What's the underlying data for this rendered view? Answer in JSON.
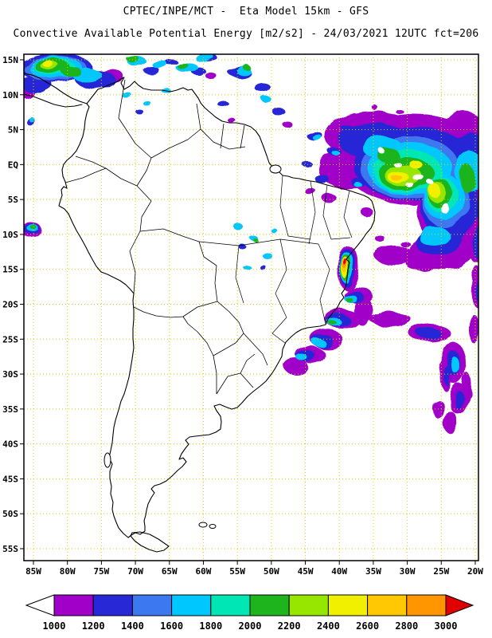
{
  "header": {
    "title_line1": "CPTEC/INPE/MCT -  Eta Model 15km - GFS",
    "title_line2": "Convective Available Potential Energy [m2/s2] - 24/03/2021 12UTC fct=206"
  },
  "map": {
    "lat_ticks": [
      "15N",
      "10N",
      "5N",
      "EQ",
      "5S",
      "10S",
      "15S",
      "20S",
      "25S",
      "30S",
      "35S",
      "40S",
      "45S",
      "50S",
      "55S"
    ],
    "lon_ticks": [
      "85W",
      "80W",
      "75W",
      "70W",
      "65W",
      "60W",
      "55W",
      "50W",
      "45W",
      "40W",
      "35W",
      "30W",
      "25W",
      "20W"
    ],
    "grid_color": "#d4d400",
    "coast_color": "#000000",
    "background": "#ffffff"
  },
  "colorbar": {
    "tick_labels": [
      "1000",
      "1200",
      "1400",
      "1600",
      "1800",
      "2000",
      "2200",
      "2400",
      "2600",
      "2800",
      "3000"
    ],
    "under_color": "#ffffff",
    "over_color": "#e00000",
    "segment_colors": [
      "#a000c8",
      "#2828d7",
      "#3c78f0",
      "#00c8ff",
      "#00e6b4",
      "#1eb41e",
      "#96e600",
      "#f0f000",
      "#ffc800",
      "#ff9600"
    ]
  }
}
